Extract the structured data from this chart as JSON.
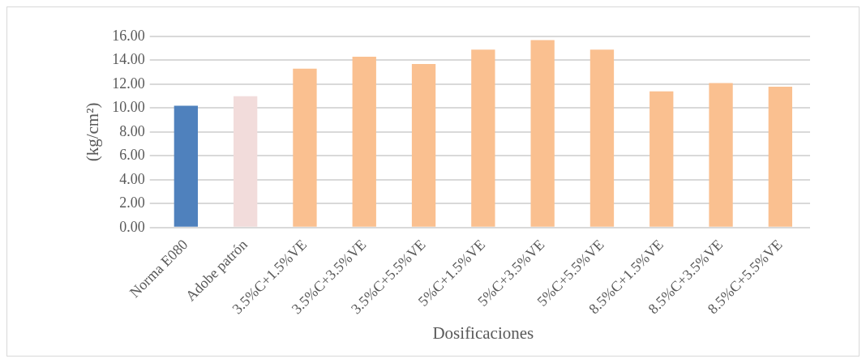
{
  "chart_data": {
    "type": "bar",
    "categories": [
      "Norma E080",
      "Adobe patrón",
      "3.5%C+1.5%VE",
      "3.5%C+3.5%VE",
      "3.5%C+5.5%VE",
      "5%C+1.5%VE",
      "5%C+3.5%VE",
      "5%C+5.5%VE",
      "8.5%C+1.5%VE",
      "8.5%C+3.5%VE",
      "8.5%C+5.5%VE"
    ],
    "values": [
      10.2,
      11.0,
      13.3,
      14.3,
      13.7,
      14.9,
      15.7,
      14.9,
      11.4,
      12.1,
      11.8
    ],
    "colors": [
      "#4f81bd",
      "#f2dcdb",
      "#fac090",
      "#fac090",
      "#fac090",
      "#fac090",
      "#fac090",
      "#fac090",
      "#fac090",
      "#fac090",
      "#fac090"
    ],
    "xlabel": "Dosificaciones",
    "ylabel": "(kg/cm²)",
    "ylim": [
      0,
      16
    ],
    "yticks": [
      {
        "value": 0,
        "label": "0.00"
      },
      {
        "value": 2,
        "label": "2.00"
      },
      {
        "value": 4,
        "label": "4.00"
      },
      {
        "value": 6,
        "label": "6.00"
      },
      {
        "value": 8,
        "label": "8.00"
      },
      {
        "value": 10,
        "label": "10.00"
      },
      {
        "value": 12,
        "label": "12.00"
      },
      {
        "value": 14,
        "label": "14.00"
      },
      {
        "value": 16,
        "label": "16.00"
      }
    ],
    "grid": "y"
  }
}
